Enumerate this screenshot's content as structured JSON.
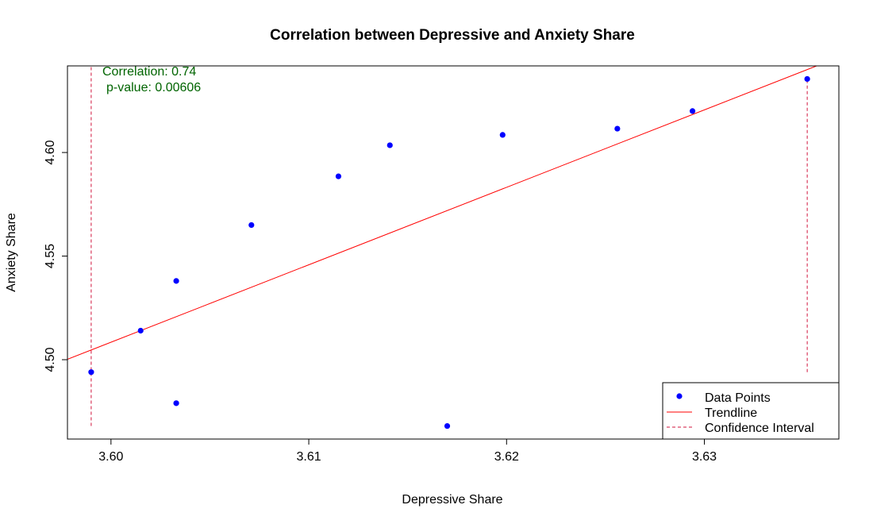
{
  "chart_data": {
    "type": "scatter",
    "title": "Correlation between Depressive and Anxiety Share",
    "xlabel": "Depressive Share",
    "ylabel": "Anxiety Share",
    "xlim": [
      3.5978,
      3.6368
    ],
    "ylim": [
      4.4617,
      4.6418
    ],
    "x_ticks": [
      3.6,
      3.61,
      3.62,
      3.63
    ],
    "y_ticks": [
      4.5,
      4.55,
      4.6
    ],
    "x_tick_labels": [
      "3.60",
      "3.61",
      "3.62",
      "3.63"
    ],
    "y_tick_labels": [
      "4.50",
      "4.55",
      "4.60"
    ],
    "series": [
      {
        "name": "Data Points",
        "kind": "points",
        "color": "#0000FF",
        "points": [
          {
            "x": 3.599,
            "y": 4.494
          },
          {
            "x": 3.6015,
            "y": 4.514
          },
          {
            "x": 3.6033,
            "y": 4.538
          },
          {
            "x": 3.6033,
            "y": 4.479
          },
          {
            "x": 3.6071,
            "y": 4.565
          },
          {
            "x": 3.6115,
            "y": 4.5885
          },
          {
            "x": 3.6141,
            "y": 4.6035
          },
          {
            "x": 3.617,
            "y": 4.468
          },
          {
            "x": 3.6198,
            "y": 4.6085
          },
          {
            "x": 3.6256,
            "y": 4.6115
          },
          {
            "x": 3.6294,
            "y": 4.62
          },
          {
            "x": 3.6352,
            "y": 4.6355
          }
        ]
      },
      {
        "name": "Trendline",
        "kind": "line",
        "color": "#FF0000",
        "points": [
          {
            "x": 3.5978,
            "y": 4.5002
          },
          {
            "x": 3.6368,
            "y": 4.646
          }
        ]
      },
      {
        "name": "Confidence Interval",
        "kind": "vlines",
        "color": "#D2143C",
        "lines": [
          {
            "x": 3.599,
            "y_from": 4.468,
            "y_to": 4.6418
          },
          {
            "x": 3.6352,
            "y_from": 4.494,
            "y_to": 4.6355
          }
        ]
      }
    ],
    "annotations": [
      "Correlation: 0.74",
      "p-value: 0.00606"
    ],
    "annotation_color": "#006400",
    "legend": {
      "position": "bottom-right",
      "entries": [
        "Data Points",
        "Trendline",
        "Confidence Interval"
      ]
    },
    "grid": false
  }
}
